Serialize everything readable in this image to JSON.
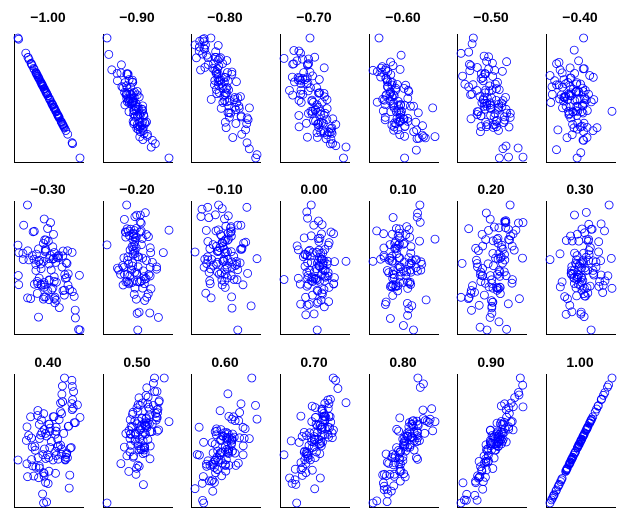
{
  "chart_data": {
    "type": "scatter",
    "grid_rows": 3,
    "grid_cols": 7,
    "points_per_panel": 100,
    "marker": "open-circle",
    "marker_color": "#0000ff",
    "axis_color": "#000000",
    "tick_labels": "none",
    "grid": false,
    "correlations": [
      -1.0,
      -0.9,
      -0.8,
      -0.7,
      -0.6,
      -0.5,
      -0.4,
      -0.3,
      -0.2,
      -0.1,
      0.0,
      0.1,
      0.2,
      0.3,
      0.4,
      0.5,
      0.6,
      0.7,
      0.8,
      0.9,
      1.0
    ],
    "titles": [
      "−1.00",
      "−0.90",
      "−0.80",
      "−0.70",
      "−0.60",
      "−0.50",
      "−0.40",
      "−0.30",
      "−0.20",
      "−0.10",
      "0.00",
      "0.10",
      "0.20",
      "0.30",
      "0.40",
      "0.50",
      "0.60",
      "0.70",
      "0.80",
      "0.90",
      "1.00"
    ]
  }
}
